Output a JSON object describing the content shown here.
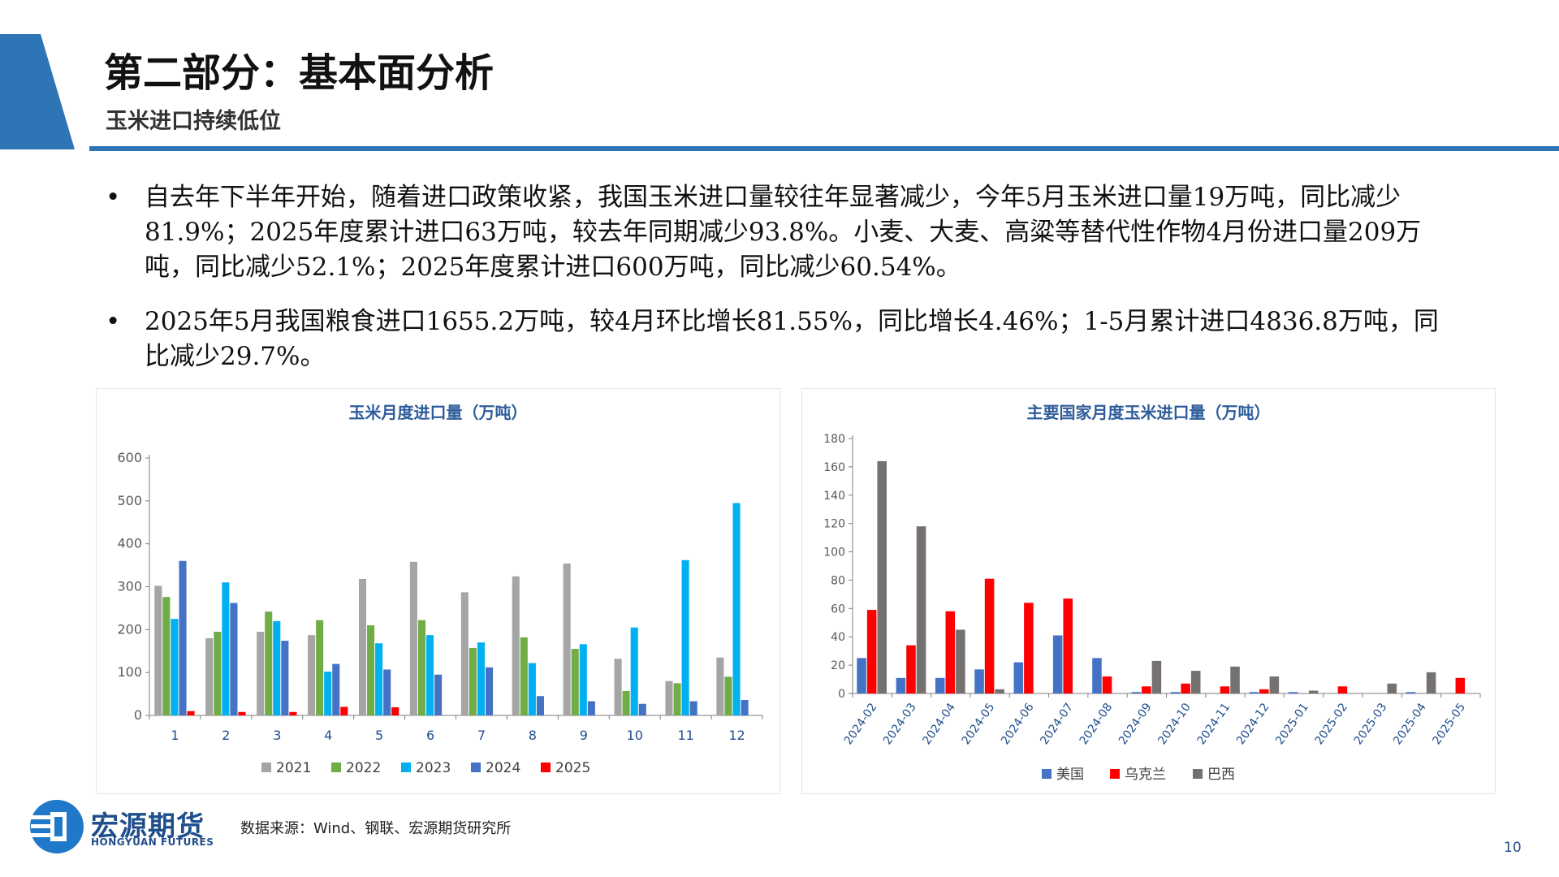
{
  "header": {
    "title": "第二部分：基本面分析",
    "subtitle": "玉米进口持续低位"
  },
  "bullets": [
    "自去年下半年开始，随着进口政策收紧，我国玉米进口量较往年显著减少，今年5月玉米进口量19万吨，同比减少81.9%；2025年度累计进口63万吨，较去年同期减少93.8%。小麦、大麦、高粱等替代性作物4月份进口量209万吨，同比减少52.1%；2025年度累计进口600万吨，同比减少60.54%。",
    "2025年5月我国粮食进口1655.2万吨，较4月环比增长81.55%，同比增长4.46%；1-5月累计进口4836.8万吨，同比减少29.7%。"
  ],
  "bullet_symbol": "•",
  "chart_data": [
    {
      "type": "bar",
      "title": "玉米月度进口量（万吨）",
      "categories": [
        "1",
        "2",
        "3",
        "4",
        "5",
        "6",
        "7",
        "8",
        "9",
        "10",
        "11",
        "12"
      ],
      "series": [
        {
          "name": "2021",
          "color": "#a5a5a5",
          "values": [
            302,
            180,
            195,
            187,
            318,
            358,
            287,
            324,
            354,
            132,
            80,
            135
          ]
        },
        {
          "name": "2022",
          "color": "#70ad47",
          "values": [
            276,
            195,
            242,
            222,
            210,
            222,
            157,
            182,
            155,
            57,
            75,
            90
          ]
        },
        {
          "name": "2023",
          "color": "#00b0f0",
          "values": [
            225,
            310,
            220,
            102,
            168,
            187,
            170,
            122,
            166,
            205,
            362,
            495
          ]
        },
        {
          "name": "2024",
          "color": "#4472c4",
          "values": [
            360,
            262,
            174,
            120,
            107,
            95,
            112,
            45,
            33,
            27,
            33,
            36
          ]
        },
        {
          "name": "2025",
          "color": "#ff0000",
          "values": [
            10,
            8,
            8,
            20,
            19,
            null,
            null,
            null,
            null,
            null,
            null,
            null
          ]
        }
      ],
      "ylim": [
        0,
        600
      ],
      "yticks": [
        0,
        100,
        200,
        300,
        400,
        500,
        600
      ],
      "legend": "bottom"
    },
    {
      "type": "bar",
      "title": "主要国家月度玉米进口量（万吨）",
      "categories": [
        "2024-02",
        "2024-03",
        "2024-04",
        "2024-05",
        "2024-06",
        "2024-07",
        "2024-08",
        "2024-09",
        "2024-10",
        "2024-11",
        "2024-12",
        "2025-01",
        "2025-02",
        "2025-03",
        "2025-04",
        "2025-05"
      ],
      "series": [
        {
          "name": "美国",
          "color": "#4472c4",
          "values": [
            25,
            11,
            11,
            17,
            22,
            41,
            25,
            1,
            1,
            0,
            1,
            1,
            0,
            0,
            1,
            0
          ]
        },
        {
          "name": "乌克兰",
          "color": "#ff0000",
          "values": [
            59,
            34,
            58,
            81,
            64,
            67,
            12,
            5,
            7,
            5,
            3,
            0,
            5,
            0,
            0,
            11
          ]
        },
        {
          "name": "巴西",
          "color": "#767171",
          "values": [
            164,
            118,
            45,
            3,
            0,
            0,
            0,
            23,
            16,
            19,
            12,
            2,
            0,
            7,
            15,
            0
          ]
        }
      ],
      "ylim": [
        0,
        180
      ],
      "yticks": [
        0,
        20,
        40,
        60,
        80,
        100,
        120,
        140,
        160,
        180
      ],
      "legend": "bottom"
    }
  ],
  "footer": {
    "logo_cn": "宏源期货",
    "logo_en": "HONGYUAN FUTURES",
    "source": "数据来源：Wind、钢联、宏源期货研究所",
    "page_number": "10"
  },
  "colors": {
    "brand_blue": "#2e75b6",
    "title_blue": "#2e5c9a",
    "logo_blue": "#1f4e8c"
  }
}
